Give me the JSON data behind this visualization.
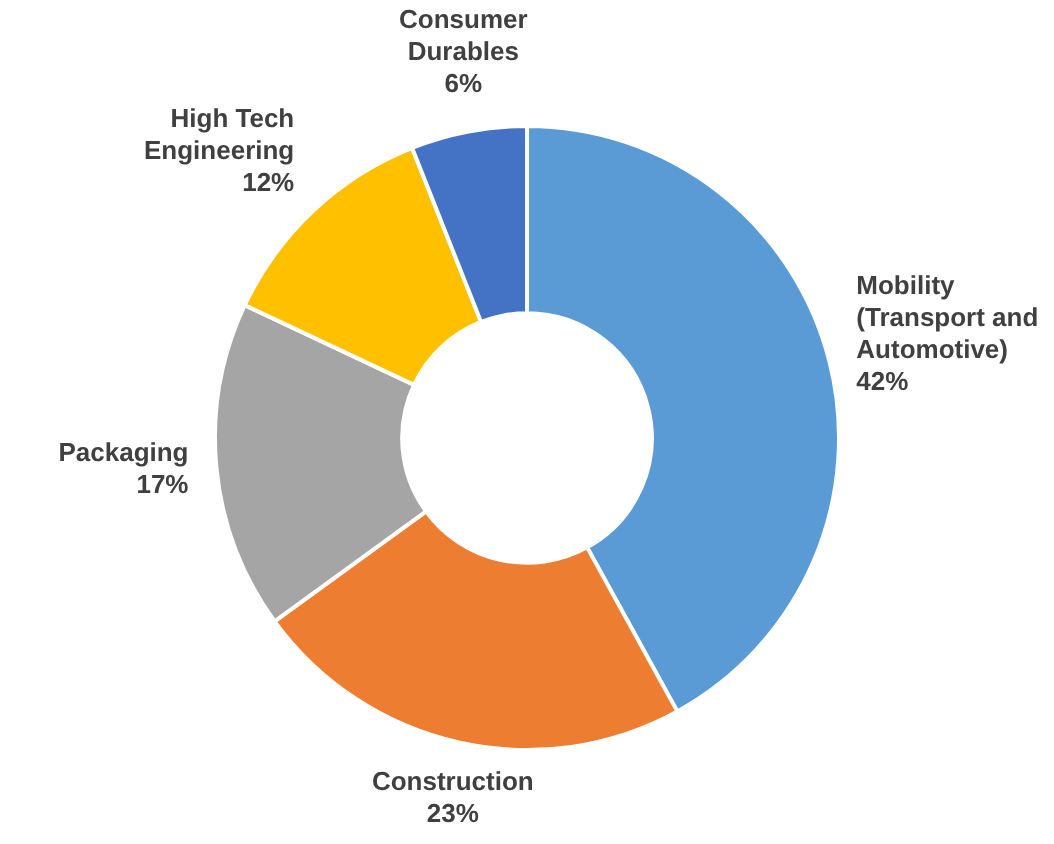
{
  "chart_data": {
    "type": "donut",
    "categories": [
      "Mobility (Transport and Automotive)",
      "Construction",
      "Packaging",
      "High Tech Engineering",
      "Consumer Durables"
    ],
    "values": [
      42,
      23,
      17,
      12,
      6
    ],
    "colors": [
      "#5b9bd5",
      "#ed7d31",
      "#a5a5a5",
      "#ffc000",
      "#4472c4"
    ],
    "value_labels": [
      "42%",
      "23%",
      "17%",
      "12%",
      "6%"
    ],
    "legend": false
  }
}
